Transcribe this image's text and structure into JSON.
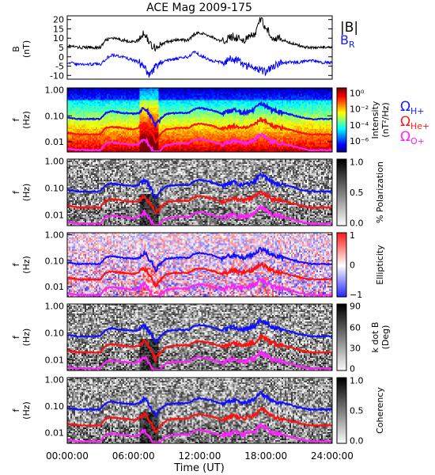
{
  "title": "ACE Mag 2009-175",
  "colors": {
    "bmag": "#000000",
    "br": "#0000ff",
    "h_plus": "#1010ff",
    "he_plus": "#ff1010",
    "o_plus": "#ff20ff"
  },
  "legend": {
    "bmag": "|B|",
    "br": "B",
    "br_sub": "R",
    "h_plus": "Ω",
    "h_plus_sub": "H+",
    "he_plus": "Ω",
    "he_plus_sub": "He+",
    "o_plus": "Ω",
    "o_plus_sub": "O+"
  },
  "chart_data": [
    {
      "type": "line",
      "ylabel": [
        "B",
        "(nT)"
      ],
      "ylim": [
        -12,
        22
      ],
      "yticks": [
        -10,
        -5,
        0,
        5,
        10,
        15,
        20
      ],
      "xlim": [
        0,
        24
      ],
      "x": [
        0,
        1,
        2,
        3,
        3.5,
        4,
        5,
        6,
        6.5,
        7,
        7.5,
        8,
        9,
        10,
        11,
        11.5,
        12,
        13,
        14,
        15,
        16,
        17,
        17.5,
        18,
        18.5,
        19,
        20,
        21,
        22,
        23,
        24
      ],
      "series": [
        {
          "name": "|B|",
          "values": [
            6,
            5,
            5,
            5,
            9,
            10,
            9,
            8,
            9,
            13,
            7,
            5,
            8,
            9,
            9,
            12,
            13,
            11,
            8,
            11,
            9,
            12,
            20,
            16,
            11,
            10,
            8,
            6,
            5,
            5,
            5
          ]
        },
        {
          "name": "B_R",
          "values": [
            -3,
            -4,
            -4,
            -4,
            -1,
            1,
            0,
            -2,
            -3,
            -6,
            -10,
            -5,
            -2,
            -1,
            0,
            3,
            1,
            -2,
            -3,
            -1,
            -4,
            -6,
            -7,
            -8,
            -5,
            -4,
            -3,
            -3,
            -2,
            -3,
            -3
          ]
        }
      ]
    },
    {
      "type": "heatmap",
      "quantity": "Intensity",
      "colorbar_label": [
        "Intensity",
        "(nT²/Hz)"
      ],
      "colorbar_ticks": [
        "10⁰",
        "10⁻²",
        "10⁻⁴",
        "10⁻⁶"
      ],
      "ylabel": [
        "f",
        "(Hz)"
      ],
      "yticks": [
        "1.00",
        "0.10",
        "0.01"
      ],
      "scale": "log"
    },
    {
      "type": "heatmap",
      "quantity": "% Polarization",
      "colorbar_label": [
        "% Polarization"
      ],
      "colorbar_ticks": [
        "1.0",
        "0.5",
        "0.0"
      ],
      "ylabel": [
        "f",
        "(Hz)"
      ],
      "yticks": [
        "1.00",
        "0.10",
        "0.01"
      ],
      "scale": "log"
    },
    {
      "type": "heatmap",
      "quantity": "Ellipticity",
      "colorbar_label": [
        "Ellipticity"
      ],
      "colorbar_ticks": [
        "1",
        "0",
        "−1"
      ],
      "ylabel": [
        "f",
        "(Hz)"
      ],
      "yticks": [
        "1.00",
        "0.10",
        "0.01"
      ],
      "scale": "log"
    },
    {
      "type": "heatmap",
      "quantity": "k dot B",
      "colorbar_label": [
        "k dot B",
        "(Deg)"
      ],
      "colorbar_ticks": [
        "90",
        "60",
        "30",
        "0"
      ],
      "ylabel": [
        "f",
        "(Hz)"
      ],
      "yticks": [
        "1.00",
        "0.10",
        "0.01"
      ],
      "scale": "log"
    },
    {
      "type": "heatmap",
      "quantity": "Coherency",
      "colorbar_label": [
        "Coherency"
      ],
      "colorbar_ticks": [
        "1.0",
        "0.5",
        "0.0"
      ],
      "ylabel": [
        "f",
        "(Hz)"
      ],
      "yticks": [
        "1.00",
        "0.10",
        "0.01"
      ],
      "scale": "log"
    }
  ],
  "gyrofrequency_curves": {
    "x": [
      0,
      1,
      2,
      3,
      3.5,
      4,
      5,
      6,
      6.5,
      7,
      7.5,
      8,
      9,
      10,
      11,
      11.5,
      12,
      13,
      14,
      15,
      16,
      17,
      17.5,
      18,
      18.5,
      19,
      20,
      21,
      22,
      23,
      24
    ],
    "H+": [
      0.085,
      0.075,
      0.075,
      0.075,
      0.13,
      0.15,
      0.13,
      0.12,
      0.13,
      0.2,
      0.1,
      0.04,
      0.12,
      0.13,
      0.13,
      0.18,
      0.2,
      0.17,
      0.12,
      0.17,
      0.13,
      0.18,
      0.3,
      0.24,
      0.17,
      0.15,
      0.12,
      0.09,
      0.075,
      0.075,
      0.075
    ],
    "He+": [
      0.022,
      0.019,
      0.019,
      0.019,
      0.034,
      0.038,
      0.034,
      0.03,
      0.034,
      0.05,
      0.026,
      0.01,
      0.03,
      0.034,
      0.034,
      0.046,
      0.05,
      0.042,
      0.03,
      0.042,
      0.034,
      0.046,
      0.076,
      0.06,
      0.042,
      0.038,
      0.03,
      0.023,
      0.019,
      0.019,
      0.019
    ],
    "O+": [
      0.0054,
      0.0047,
      0.0047,
      0.0047,
      0.0085,
      0.0095,
      0.0085,
      0.0075,
      0.0085,
      0.0125,
      0.0065,
      0.0025,
      0.0075,
      0.0085,
      0.0085,
      0.0115,
      0.0125,
      0.0105,
      0.0075,
      0.0105,
      0.0085,
      0.0115,
      0.019,
      0.015,
      0.0105,
      0.0095,
      0.0075,
      0.0057,
      0.0047,
      0.0047,
      0.0047
    ]
  },
  "x_axis": {
    "label": "Time (UT)",
    "ticks": [
      "00:00:00",
      "06:00:00",
      "12:00:00",
      "18:00:00",
      "24:00:00"
    ]
  }
}
